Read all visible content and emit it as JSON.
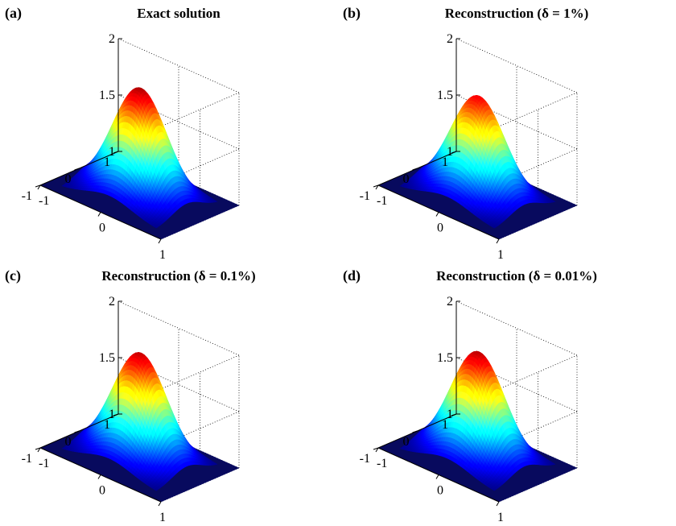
{
  "chart_data": [
    {
      "type": "surface",
      "panel": "(a)",
      "title": "Exact solution",
      "x": [
        -1,
        0,
        1
      ],
      "y": [
        -1,
        0,
        1
      ],
      "zlim": [
        1,
        2
      ],
      "z_ticks": [
        "1",
        "1.5",
        "2"
      ],
      "x_ticks": [
        "-1",
        "0",
        "1"
      ],
      "y_ticks": [
        "-1",
        "0",
        "1"
      ],
      "peak": 1.95,
      "base": 1.0,
      "colormap": "jet",
      "grid": true
    },
    {
      "type": "surface",
      "panel": "(b)",
      "title": "Reconstruction (δ = 1%)",
      "x": [
        -1,
        0,
        1
      ],
      "y": [
        -1,
        0,
        1
      ],
      "zlim": [
        1,
        2
      ],
      "z_ticks": [
        "1",
        "1.5",
        "2"
      ],
      "x_ticks": [
        "-1",
        "0",
        "1"
      ],
      "y_ticks": [
        "-1",
        "0",
        "1"
      ],
      "peak": 1.88,
      "base": 1.0,
      "colormap": "jet",
      "grid": true
    },
    {
      "type": "surface",
      "panel": "(c)",
      "title": "Reconstruction (δ = 0.1%)",
      "x": [
        -1,
        0,
        1
      ],
      "y": [
        -1,
        0,
        1
      ],
      "zlim": [
        1,
        2
      ],
      "z_ticks": [
        "1",
        "1.5",
        "2"
      ],
      "x_ticks": [
        "-1",
        "0",
        "1"
      ],
      "y_ticks": [
        "-1",
        "0",
        "1"
      ],
      "peak": 1.93,
      "base": 1.0,
      "colormap": "jet",
      "grid": true
    },
    {
      "type": "surface",
      "panel": "(d)",
      "title": "Reconstruction (δ = 0.01%)",
      "x": [
        -1,
        0,
        1
      ],
      "y": [
        -1,
        0,
        1
      ],
      "zlim": [
        1,
        2
      ],
      "z_ticks": [
        "1",
        "1.5",
        "2"
      ],
      "x_ticks": [
        "-1",
        "0",
        "1"
      ],
      "y_ticks": [
        "-1",
        "0",
        "1"
      ],
      "peak": 1.94,
      "base": 1.0,
      "colormap": "jet",
      "grid": true
    }
  ]
}
